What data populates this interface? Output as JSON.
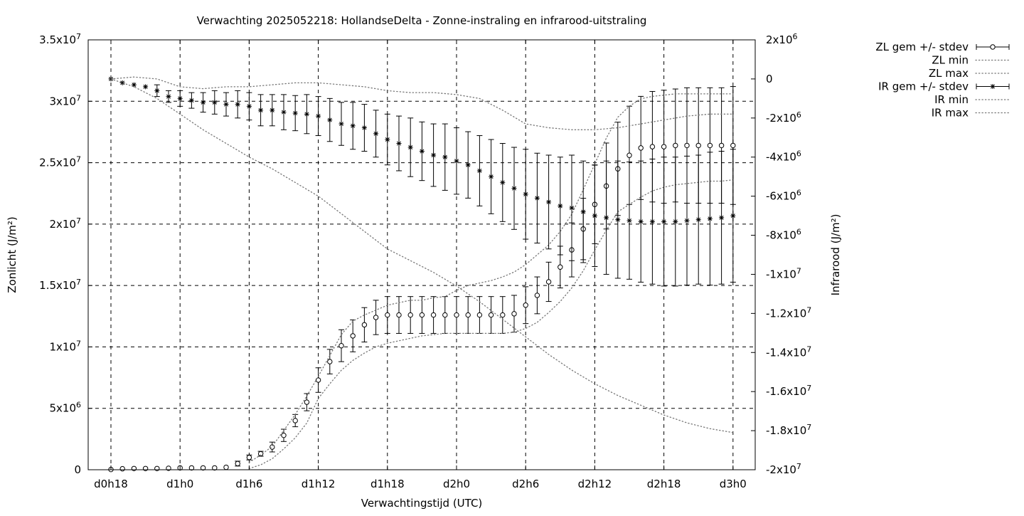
{
  "chart_data": {
    "type": "line",
    "title": "Verwachting 2025052218: HollandseDelta - Zonne-instraling en infrarood-uitstraling",
    "xlabel": "Verwachtingstijd (UTC)",
    "ylabel": "Zonlicht (J/m²)",
    "y2label": "Infrarood (J/m²)",
    "x_unit": "hours since d0h18",
    "xlim": [
      -2,
      56
    ],
    "ylim": [
      0,
      35000000
    ],
    "y2lim": [
      -20000000,
      2000000
    ],
    "x_ticks": [
      {
        "x": 0,
        "label": "d0h18"
      },
      {
        "x": 6,
        "label": "d1h0"
      },
      {
        "x": 12,
        "label": "d1h6"
      },
      {
        "x": 18,
        "label": "d1h12"
      },
      {
        "x": 24,
        "label": "d1h18"
      },
      {
        "x": 30,
        "label": "d2h0"
      },
      {
        "x": 36,
        "label": "d2h6"
      },
      {
        "x": 42,
        "label": "d2h12"
      },
      {
        "x": 48,
        "label": "d2h18"
      },
      {
        "x": 54,
        "label": "d3h0"
      }
    ],
    "y_ticks": [
      {
        "v": 0,
        "mant": "0",
        "exp": ""
      },
      {
        "v": 5000000,
        "mant": "5x10",
        "exp": "6"
      },
      {
        "v": 10000000,
        "mant": "1x10",
        "exp": "7"
      },
      {
        "v": 15000000,
        "mant": "1.5x10",
        "exp": "7"
      },
      {
        "v": 20000000,
        "mant": "2x10",
        "exp": "7"
      },
      {
        "v": 25000000,
        "mant": "2.5x10",
        "exp": "7"
      },
      {
        "v": 30000000,
        "mant": "3x10",
        "exp": "7"
      },
      {
        "v": 35000000,
        "mant": "3.5x10",
        "exp": "7"
      }
    ],
    "y2_ticks": [
      {
        "v": 2000000,
        "mant": "2x10",
        "exp": "6"
      },
      {
        "v": 0,
        "mant": "0",
        "exp": ""
      },
      {
        "v": -2000000,
        "mant": "-2x10",
        "exp": "6"
      },
      {
        "v": -4000000,
        "mant": "-4x10",
        "exp": "6"
      },
      {
        "v": -6000000,
        "mant": "-6x10",
        "exp": "6"
      },
      {
        "v": -8000000,
        "mant": "-8x10",
        "exp": "6"
      },
      {
        "v": -10000000,
        "mant": "-1x10",
        "exp": "7"
      },
      {
        "v": -12000000,
        "mant": "-1.2x10",
        "exp": "7"
      },
      {
        "v": -14000000,
        "mant": "-1.4x10",
        "exp": "7"
      },
      {
        "v": -16000000,
        "mant": "-1.6x10",
        "exp": "7"
      },
      {
        "v": -18000000,
        "mant": "-1.8x10",
        "exp": "7"
      },
      {
        "v": -20000000,
        "mant": "-2x10",
        "exp": "7"
      }
    ],
    "grid": true,
    "legend_position": "outside-right-top",
    "series": [
      {
        "name": "ZL gem +/- stdev",
        "axis": "y1",
        "style": "errorbars-circle",
        "x": [
          0,
          1,
          2,
          3,
          4,
          5,
          6,
          7,
          8,
          9,
          10,
          11,
          12,
          13,
          14,
          15,
          16,
          17,
          18,
          19,
          20,
          21,
          22,
          23,
          24,
          25,
          26,
          27,
          28,
          29,
          30,
          31,
          32,
          33,
          34,
          35,
          36,
          37,
          38,
          39,
          40,
          41,
          42,
          43,
          44,
          45,
          46,
          47,
          48,
          49,
          50,
          51,
          52,
          53,
          54
        ],
        "y": [
          0.02,
          0.08,
          0.1,
          0.1,
          0.1,
          0.12,
          0.15,
          0.15,
          0.15,
          0.15,
          0.2,
          0.5,
          1.0,
          1.3,
          1.85,
          2.8,
          4.0,
          5.5,
          7.3,
          8.8,
          10.1,
          10.9,
          11.8,
          12.4,
          12.6,
          12.6,
          12.6,
          12.6,
          12.6,
          12.6,
          12.6,
          12.6,
          12.6,
          12.6,
          12.6,
          12.7,
          13.4,
          14.2,
          15.3,
          16.5,
          17.9,
          19.6,
          21.6,
          23.1,
          24.5,
          25.6,
          26.2,
          26.3,
          26.3,
          26.4,
          26.4,
          26.4,
          26.4,
          26.4,
          26.4
        ],
        "stdev": [
          0,
          0,
          0,
          0,
          0,
          0,
          0,
          0,
          0,
          0,
          0,
          0.2,
          0.2,
          0.2,
          0.4,
          0.5,
          0.5,
          0.7,
          1.0,
          1.0,
          1.3,
          1.3,
          1.4,
          1.4,
          1.5,
          1.5,
          1.5,
          1.5,
          1.5,
          1.5,
          1.5,
          1.5,
          1.5,
          1.5,
          1.5,
          1.5,
          1.5,
          1.5,
          1.6,
          1.7,
          2.2,
          2.5,
          3.2,
          3.5,
          3.8,
          4.0,
          4.2,
          4.5,
          4.6,
          4.6,
          4.7,
          4.7,
          4.7,
          4.7,
          4.8
        ],
        "y_unit": "1e6 J/m²"
      },
      {
        "name": "ZL min",
        "axis": "y1",
        "style": "dotted",
        "x": [
          12,
          13,
          14,
          15,
          16,
          17,
          18,
          19,
          20,
          21,
          22,
          23,
          24,
          25,
          26,
          27,
          28,
          29,
          30,
          31,
          32,
          33,
          34,
          35,
          36,
          37,
          38,
          39,
          40,
          41,
          42,
          43,
          44,
          45,
          46,
          47,
          48,
          49,
          50,
          51,
          52,
          53,
          54
        ],
        "y": [
          0.1,
          0.4,
          0.9,
          1.7,
          2.6,
          3.8,
          5.8,
          7.0,
          8.1,
          8.9,
          9.5,
          10.0,
          10.3,
          10.5,
          10.7,
          10.9,
          11.0,
          11.1,
          11.1,
          11.1,
          11.1,
          11.1,
          11.1,
          11.2,
          11.5,
          12.0,
          12.8,
          13.7,
          14.8,
          16.2,
          17.9,
          19.5,
          21.0,
          21.6,
          22.2,
          22.7,
          23.0,
          23.2,
          23.3,
          23.4,
          23.5,
          23.5,
          23.6
        ],
        "y_unit": "1e6 J/m²"
      },
      {
        "name": "ZL max",
        "axis": "y1",
        "style": "dotted",
        "x": [
          12,
          13,
          14,
          15,
          16,
          17,
          18,
          19,
          20,
          21,
          22,
          23,
          24,
          25,
          26,
          27,
          28,
          29,
          30,
          31,
          32,
          33,
          34,
          35,
          36,
          37,
          38,
          39,
          40,
          41,
          42,
          43,
          44,
          45,
          46,
          47,
          48,
          49,
          50,
          51,
          52,
          53,
          54
        ],
        "y": [
          0.6,
          1.2,
          1.9,
          3.2,
          4.5,
          6.0,
          7.6,
          9.3,
          11.0,
          12.1,
          12.6,
          13.0,
          13.4,
          13.6,
          13.8,
          13.8,
          14.0,
          14.1,
          14.6,
          15.0,
          15.2,
          15.4,
          15.7,
          16.1,
          16.7,
          17.5,
          18.3,
          19.4,
          20.8,
          22.8,
          24.9,
          27.0,
          28.7,
          29.6,
          30.2,
          30.4,
          30.5,
          30.6,
          30.6,
          30.6,
          30.6,
          30.6,
          30.6
        ],
        "y_unit": "1e6 J/m²"
      },
      {
        "name": "IR gem +/- stdev",
        "axis": "y2",
        "style": "errorbars-star",
        "x": [
          0,
          1,
          2,
          3,
          4,
          5,
          6,
          7,
          8,
          9,
          10,
          11,
          12,
          13,
          14,
          15,
          16,
          17,
          18,
          19,
          20,
          21,
          22,
          23,
          24,
          25,
          26,
          27,
          28,
          29,
          30,
          31,
          32,
          33,
          34,
          35,
          36,
          37,
          38,
          39,
          40,
          41,
          42,
          43,
          44,
          45,
          46,
          47,
          48,
          49,
          50,
          51,
          52,
          53,
          54
        ],
        "y": [
          0.0,
          -0.2,
          -0.3,
          -0.4,
          -0.6,
          -0.9,
          -1.0,
          -1.1,
          -1.2,
          -1.2,
          -1.3,
          -1.3,
          -1.4,
          -1.6,
          -1.6,
          -1.7,
          -1.75,
          -1.8,
          -1.9,
          -2.1,
          -2.3,
          -2.4,
          -2.5,
          -2.8,
          -3.1,
          -3.3,
          -3.5,
          -3.7,
          -3.9,
          -4.0,
          -4.2,
          -4.4,
          -4.7,
          -5.0,
          -5.3,
          -5.6,
          -5.9,
          -6.1,
          -6.3,
          -6.5,
          -6.6,
          -6.8,
          -7.0,
          -7.1,
          -7.2,
          -7.25,
          -7.3,
          -7.3,
          -7.3,
          -7.3,
          -7.25,
          -7.2,
          -7.15,
          -7.1,
          -7.0
        ],
        "stdev": [
          0,
          0,
          0,
          0,
          0.3,
          0.3,
          0.4,
          0.4,
          0.5,
          0.6,
          0.6,
          0.7,
          0.7,
          0.8,
          0.8,
          0.9,
          0.9,
          1.0,
          1.0,
          1.1,
          1.1,
          1.2,
          1.2,
          1.2,
          1.3,
          1.4,
          1.5,
          1.5,
          1.6,
          1.7,
          1.7,
          1.7,
          1.8,
          1.9,
          2.0,
          2.1,
          2.3,
          2.3,
          2.4,
          2.5,
          2.7,
          2.6,
          2.6,
          2.9,
          3.0,
          3.0,
          3.1,
          3.2,
          3.3,
          3.3,
          3.3,
          3.3,
          3.4,
          3.4,
          3.4
        ],
        "y_unit": "1e6 J/m²"
      },
      {
        "name": "IR min",
        "axis": "y2",
        "style": "dotted",
        "x": [
          0,
          2,
          4,
          6,
          8,
          10,
          12,
          14,
          16,
          18,
          20,
          22,
          24,
          26,
          28,
          30,
          32,
          34,
          36,
          38,
          40,
          42,
          44,
          46,
          48,
          50,
          52,
          54
        ],
        "y": [
          0.0,
          -0.4,
          -1.0,
          -1.8,
          -2.6,
          -3.3,
          -4.0,
          -4.6,
          -5.3,
          -6.0,
          -6.9,
          -7.8,
          -8.7,
          -9.3,
          -9.9,
          -10.6,
          -11.4,
          -12.3,
          -13.2,
          -14.1,
          -14.9,
          -15.6,
          -16.2,
          -16.7,
          -17.2,
          -17.6,
          -17.9,
          -18.1
        ],
        "y_unit": "1e6 J/m²"
      },
      {
        "name": "IR max",
        "axis": "y2",
        "style": "dotted",
        "x": [
          0,
          2,
          4,
          6,
          8,
          10,
          12,
          14,
          16,
          18,
          20,
          22,
          24,
          26,
          28,
          30,
          32,
          34,
          36,
          38,
          40,
          42,
          44,
          46,
          48,
          50,
          52,
          54
        ],
        "y": [
          0.0,
          0.1,
          0.0,
          -0.4,
          -0.5,
          -0.4,
          -0.4,
          -0.3,
          -0.2,
          -0.2,
          -0.3,
          -0.4,
          -0.6,
          -0.7,
          -0.7,
          -0.8,
          -1.0,
          -1.6,
          -2.3,
          -2.5,
          -2.6,
          -2.6,
          -2.5,
          -2.3,
          -2.1,
          -1.9,
          -1.8,
          -1.8
        ],
        "y_unit": "1e6 J/m²"
      }
    ]
  }
}
